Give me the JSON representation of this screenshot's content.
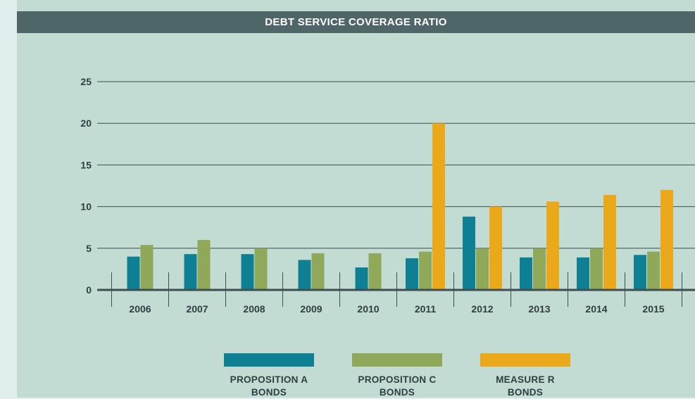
{
  "chart_data": {
    "type": "bar",
    "title": "DEBT SERVICE COVERAGE RATIO",
    "categories": [
      "2006",
      "2007",
      "2008",
      "2009",
      "2010",
      "2011",
      "2012",
      "2013",
      "2014",
      "2015"
    ],
    "yticks": [
      "0",
      "5",
      "10",
      "15",
      "20",
      "25"
    ],
    "ylim": [
      0,
      25
    ],
    "grid": true,
    "legend_position": "bottom",
    "series": [
      {
        "name": "PROPOSITION A BONDS",
        "color": "#0f7f93",
        "values": [
          4.0,
          4.3,
          4.3,
          3.6,
          2.7,
          3.8,
          8.8,
          3.9,
          3.9,
          4.2
        ]
      },
      {
        "name": "PROPOSITION C BONDS",
        "color": "#8fa85a",
        "values": [
          5.4,
          6.0,
          5.0,
          4.4,
          4.4,
          4.6,
          5.0,
          5.0,
          5.0,
          4.6
        ]
      },
      {
        "name": "MEASURE R BONDS",
        "color": "#eba81a",
        "values": [
          null,
          null,
          null,
          null,
          null,
          20.0,
          10.0,
          10.6,
          11.4,
          12.0
        ]
      }
    ]
  }
}
